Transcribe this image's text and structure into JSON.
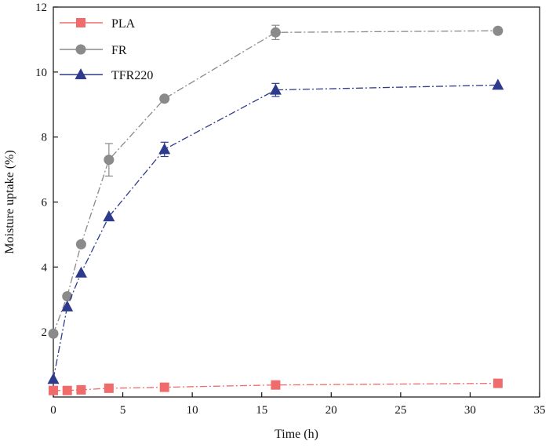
{
  "chart_data": {
    "type": "line",
    "xlabel": "Time (h)",
    "ylabel": "Moisture uptake (%)",
    "xlim": [
      0,
      35
    ],
    "ylim": [
      0,
      12
    ],
    "xticks": [
      0,
      5,
      10,
      15,
      20,
      25,
      30,
      35
    ],
    "yticks": [
      2,
      4,
      6,
      8,
      10,
      12
    ],
    "xtick_labels": [
      "0",
      "5",
      "10",
      "15",
      "20",
      "25",
      "30",
      "35"
    ],
    "ytick_labels": [
      "2",
      "4",
      "6",
      "8",
      "10",
      "12"
    ],
    "grid": false,
    "legend_position": "top-left",
    "series": [
      {
        "name": "PLA",
        "color": "#f06b6b",
        "marker": "square",
        "x": [
          0,
          1,
          2,
          4,
          8,
          16,
          32
        ],
        "y": [
          0.2,
          0.2,
          0.22,
          0.27,
          0.3,
          0.37,
          0.42
        ],
        "err": [
          0,
          0,
          0,
          0,
          0,
          0,
          0
        ]
      },
      {
        "name": "FR",
        "color": "#8a8a8a",
        "marker": "circle",
        "x": [
          0,
          1,
          2,
          4,
          8,
          16,
          32
        ],
        "y": [
          1.95,
          3.1,
          4.7,
          7.3,
          9.18,
          11.22,
          11.27
        ],
        "err": [
          0,
          0,
          0,
          0.5,
          0,
          0.22,
          0
        ]
      },
      {
        "name": "TFR220",
        "color": "#2e3a8c",
        "marker": "triangle",
        "x": [
          0,
          1,
          2,
          4,
          8,
          16,
          32
        ],
        "y": [
          0.55,
          2.78,
          3.82,
          5.55,
          7.62,
          9.45,
          9.6
        ],
        "err": [
          0,
          0,
          0,
          0,
          0.22,
          0.2,
          0
        ]
      }
    ]
  }
}
